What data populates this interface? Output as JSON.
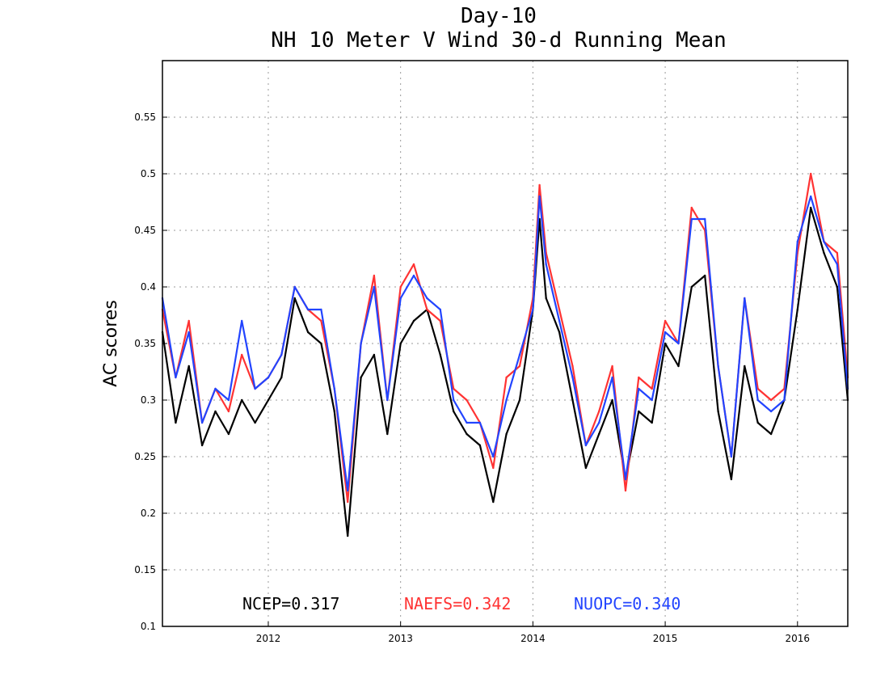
{
  "chart_data": {
    "type": "line",
    "title": "Day-10",
    "subtitle": "NH 10 Meter V Wind 30-d Running Mean",
    "xlabel": "",
    "ylabel": "AC scores",
    "xlim": [
      2011.2,
      2016.38
    ],
    "ylim": [
      0.1,
      0.6
    ],
    "x_ticks": [
      2012,
      2013,
      2014,
      2015,
      2016
    ],
    "x_tick_labels": [
      "2012",
      "2013",
      "2014",
      "2015",
      "2016"
    ],
    "y_ticks": [
      0.1,
      0.15,
      0.2,
      0.25,
      0.3,
      0.35,
      0.4,
      0.45,
      0.5,
      0.55
    ],
    "y_tick_labels": [
      "0.1",
      "0.15",
      "0.2",
      "0.25",
      "0.3",
      "0.35",
      "0.4",
      "0.45",
      "0.5",
      "0.55"
    ],
    "grid": true,
    "legend_placement": "bottom",
    "legend": [
      {
        "label": "NCEP=0.317",
        "color": "#000000"
      },
      {
        "label": "NAEFS=0.342",
        "color": "#ff3333"
      },
      {
        "label": "NUOPC=0.340",
        "color": "#2244ff"
      }
    ],
    "x": [
      2011.2,
      2011.3,
      2011.4,
      2011.5,
      2011.6,
      2011.7,
      2011.8,
      2011.9,
      2012.0,
      2012.1,
      2012.2,
      2012.3,
      2012.4,
      2012.5,
      2012.6,
      2012.7,
      2012.8,
      2012.9,
      2013.0,
      2013.1,
      2013.2,
      2013.3,
      2013.4,
      2013.5,
      2013.6,
      2013.7,
      2013.8,
      2013.9,
      2014.0,
      2014.05,
      2014.1,
      2014.2,
      2014.3,
      2014.4,
      2014.5,
      2014.6,
      2014.7,
      2014.8,
      2014.9,
      2015.0,
      2015.1,
      2015.2,
      2015.3,
      2015.4,
      2015.5,
      2015.6,
      2015.7,
      2015.8,
      2015.9,
      2016.0,
      2016.1,
      2016.2,
      2016.3,
      2016.38
    ],
    "series": [
      {
        "name": "NCEP",
        "color": "#000000",
        "values": [
          0.36,
          0.28,
          0.33,
          0.26,
          0.29,
          0.27,
          0.3,
          0.28,
          0.3,
          0.32,
          0.39,
          0.36,
          0.35,
          0.29,
          0.18,
          0.32,
          0.34,
          0.27,
          0.35,
          0.37,
          0.38,
          0.34,
          0.29,
          0.27,
          0.26,
          0.21,
          0.27,
          0.3,
          0.38,
          0.46,
          0.39,
          0.36,
          0.3,
          0.24,
          0.27,
          0.3,
          0.23,
          0.29,
          0.28,
          0.35,
          0.33,
          0.4,
          0.41,
          0.29,
          0.23,
          0.33,
          0.28,
          0.27,
          0.3,
          0.38,
          0.47,
          0.43,
          0.4,
          0.3
        ]
      },
      {
        "name": "NAEFS",
        "color": "#ff3333",
        "values": [
          0.38,
          0.32,
          0.37,
          0.28,
          0.31,
          0.29,
          0.34,
          0.31,
          0.32,
          0.34,
          0.4,
          0.38,
          0.37,
          0.31,
          0.21,
          0.35,
          0.41,
          0.3,
          0.4,
          0.42,
          0.38,
          0.37,
          0.31,
          0.3,
          0.28,
          0.24,
          0.32,
          0.33,
          0.39,
          0.49,
          0.43,
          0.38,
          0.33,
          0.26,
          0.29,
          0.33,
          0.22,
          0.32,
          0.31,
          0.37,
          0.35,
          0.47,
          0.45,
          0.33,
          0.25,
          0.39,
          0.31,
          0.3,
          0.31,
          0.43,
          0.5,
          0.44,
          0.43,
          0.32
        ]
      },
      {
        "name": "NUOPC",
        "color": "#2244ff",
        "values": [
          0.39,
          0.32,
          0.36,
          0.28,
          0.31,
          0.3,
          0.37,
          0.31,
          0.32,
          0.34,
          0.4,
          0.38,
          0.38,
          0.31,
          0.22,
          0.35,
          0.4,
          0.3,
          0.39,
          0.41,
          0.39,
          0.38,
          0.3,
          0.28,
          0.28,
          0.25,
          0.3,
          0.34,
          0.38,
          0.48,
          0.42,
          0.37,
          0.32,
          0.26,
          0.28,
          0.32,
          0.23,
          0.31,
          0.3,
          0.36,
          0.35,
          0.46,
          0.46,
          0.33,
          0.25,
          0.39,
          0.3,
          0.29,
          0.3,
          0.44,
          0.48,
          0.44,
          0.42,
          0.31
        ]
      }
    ]
  }
}
